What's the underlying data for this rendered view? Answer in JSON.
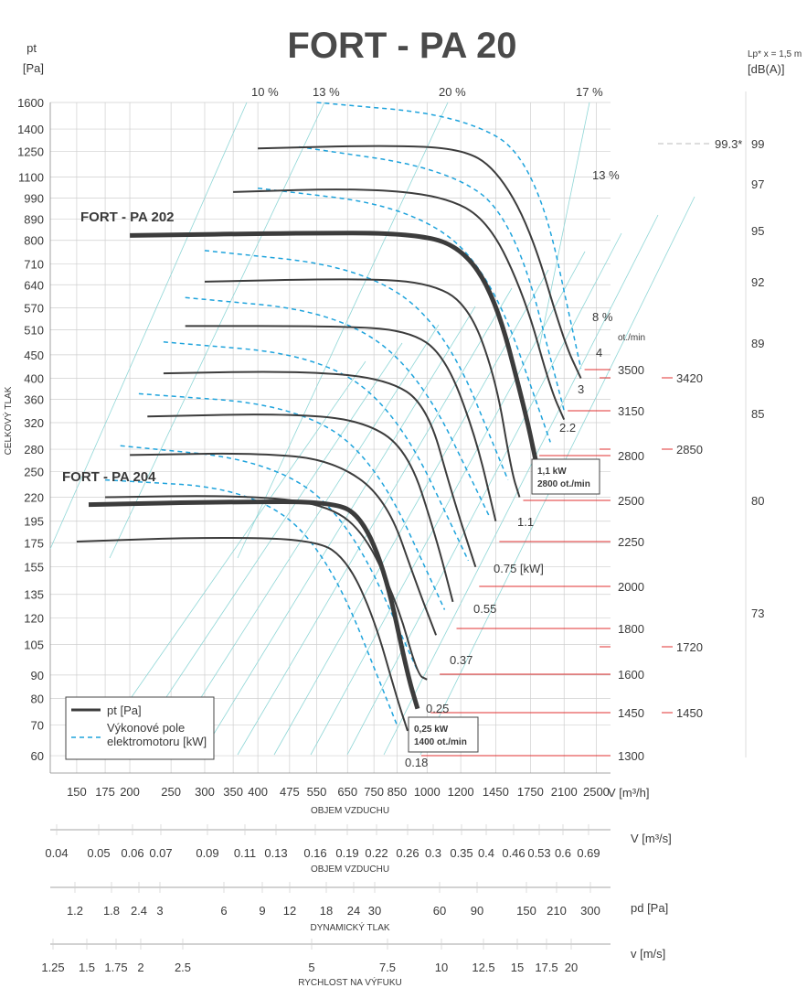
{
  "chart_data": {
    "type": "line",
    "title": "FORT - PA 20",
    "ylabel_unit": "pt\n[Pa]",
    "ylabel": "CELKOVÝ TLAK",
    "right_label": "Lp* x = 1,5 m\n[dB(A)]",
    "xlabel": "OBJEM VZDUCHU",
    "x_unit": "V [m³/h]",
    "y_ticks": [
      1600,
      1400,
      1250,
      1100,
      990,
      890,
      800,
      710,
      640,
      570,
      510,
      450,
      400,
      360,
      320,
      280,
      250,
      220,
      195,
      175,
      155,
      135,
      120,
      105,
      90,
      80,
      70,
      60
    ],
    "x_ticks": [
      150,
      175,
      200,
      250,
      300,
      350,
      400,
      475,
      550,
      650,
      750,
      850,
      1000,
      1200,
      1450,
      1750,
      2100,
      2500
    ],
    "efficiency_labels": [
      "10 %",
      "13 %",
      "20 %",
      "17 %",
      "13 %",
      "8 %"
    ],
    "speed_label": "ot./min",
    "speeds": [
      3500,
      3150,
      2800,
      2500,
      2250,
      2000,
      1800,
      1600,
      1450,
      1300
    ],
    "speed_extra": [
      3420,
      2850,
      1720,
      1450
    ],
    "power_labels": [
      "4",
      "3",
      "2.2",
      "1.1",
      "0.75  [kW]",
      "0.55",
      "0.37",
      "0.25",
      "0.18"
    ],
    "db_values": [
      "99",
      "97",
      "95",
      "92",
      "89",
      "85",
      "80",
      "73"
    ],
    "db_note": "99.3*",
    "series_labels": [
      "FORT - PA 202",
      "FORT - PA 204"
    ],
    "callouts": [
      {
        "kw": "1,1 kW",
        "rpm": "2800 ot./min"
      },
      {
        "kw": "0,25 kW",
        "rpm": "1400 ot./min"
      }
    ],
    "legend": {
      "curve": "pt [Pa]",
      "power": "Výkonové pole\nelektromotoru [kW]"
    },
    "curves": [
      {
        "rpm": 3500,
        "x": [
          400,
          800,
          1200,
          1450,
          1750,
          2100,
          2300
        ],
        "y": [
          1270,
          1290,
          1270,
          1150,
          850,
          480,
          400
        ]
      },
      {
        "rpm": 3150,
        "x": [
          350,
          700,
          1100,
          1400,
          1700,
          1950,
          2100
        ],
        "y": [
          1020,
          1040,
          1000,
          880,
          600,
          380,
          325
        ]
      },
      {
        "rpm": 2800,
        "x": [
          200,
          500,
          900,
          1200,
          1450,
          1700,
          1800
        ],
        "y": [
          820,
          830,
          830,
          780,
          600,
          340,
          265
        ],
        "thick": true,
        "name": "FORT - PA 202"
      },
      {
        "rpm": 2500,
        "x": [
          300,
          650,
          1000,
          1250,
          1450,
          1580,
          1650
        ],
        "y": [
          650,
          660,
          650,
          580,
          400,
          250,
          220
        ]
      },
      {
        "rpm": 2250,
        "x": [
          270,
          600,
          900,
          1100,
          1300,
          1450
        ],
        "y": [
          520,
          520,
          510,
          450,
          300,
          195
        ]
      },
      {
        "rpm": 2000,
        "x": [
          240,
          500,
          800,
          1000,
          1150,
          1300
        ],
        "y": [
          410,
          415,
          400,
          350,
          220,
          155
        ]
      },
      {
        "rpm": 1800,
        "x": [
          220,
          450,
          700,
          900,
          1050,
          1150
        ],
        "y": [
          330,
          335,
          325,
          280,
          180,
          130
        ]
      },
      {
        "rpm": 1600,
        "x": [
          200,
          400,
          600,
          800,
          950,
          1050
        ],
        "y": [
          272,
          275,
          265,
          220,
          140,
          110
        ]
      },
      {
        "rpm": 1450,
        "x": [
          175,
          350,
          550,
          700,
          850,
          950,
          1000
        ],
        "y": [
          220,
          222,
          215,
          190,
          130,
          90,
          88
        ]
      },
      {
        "rpm": 1400,
        "x": [
          160,
          350,
          600,
          700,
          800,
          900,
          950
        ],
        "y": [
          212,
          215,
          215,
          200,
          150,
          90,
          76
        ],
        "thick": true,
        "name": "FORT - PA 204"
      },
      {
        "rpm": 1300,
        "x": [
          150,
          300,
          550,
          650,
          750,
          850,
          900
        ],
        "y": [
          176,
          180,
          178,
          160,
          120,
          80,
          68
        ]
      }
    ],
    "power_curves": [
      {
        "kw": "4",
        "x": [
          550,
          1200,
          1800,
          2300
        ],
        "y": [
          1600,
          1500,
          1200,
          420
        ]
      },
      {
        "kw": "3",
        "x": [
          500,
          1100,
          1600,
          2100
        ],
        "y": [
          1280,
          1150,
          900,
          340
        ]
      },
      {
        "kw": "2.2",
        "x": [
          400,
          900,
          1400,
          1950
        ],
        "y": [
          1040,
          950,
          700,
          290
        ]
      },
      {
        "kw": "1.1",
        "x": [
          300,
          700,
          1100,
          1550
        ],
        "y": [
          760,
          700,
          520,
          240
        ]
      },
      {
        "kw": "0.75",
        "x": [
          270,
          600,
          950,
          1400
        ],
        "y": [
          600,
          560,
          420,
          200
        ]
      },
      {
        "kw": "0.55",
        "x": [
          240,
          550,
          850,
          1250
        ],
        "y": [
          480,
          450,
          340,
          160
        ]
      },
      {
        "kw": "0.37",
        "x": [
          210,
          480,
          750,
          1100
        ],
        "y": [
          370,
          350,
          270,
          125
        ]
      },
      {
        "kw": "0.25",
        "x": [
          190,
          420,
          650,
          950
        ],
        "y": [
          285,
          265,
          200,
          92
        ]
      },
      {
        "kw": "0.18",
        "x": [
          175,
          380,
          580,
          850
        ],
        "y": [
          240,
          230,
          170,
          70
        ]
      }
    ]
  },
  "axes2": {
    "vms": {
      "unit": "V [m³/s]",
      "label": "OBJEM VZDUCHU",
      "ticks": [
        "0.04",
        "0.05",
        "0.06",
        "0.07",
        "0.09",
        "0.11",
        "0.13",
        "0.16",
        "0.19",
        "0.22",
        "0.26",
        "0.3",
        "0.35",
        "0.4",
        "0.46",
        "0.53",
        "0.6",
        "0.69"
      ]
    },
    "pd": {
      "unit": "pd [Pa]",
      "label": "DYNAMICKÝ TLAK",
      "ticks": [
        "1.2",
        "1.8",
        "2.4",
        "3",
        "6",
        "9",
        "12",
        "18",
        "24",
        "30",
        "60",
        "90",
        "150",
        "210",
        "300"
      ]
    },
    "v": {
      "unit": "v [m/s]",
      "label": "RYCHLOST NA VÝFUKU",
      "ticks": [
        "1.25",
        "1.5",
        "1.75",
        "2",
        "2.5",
        "5",
        "7.5",
        "10",
        "12.5",
        "15",
        "17.5",
        "20"
      ]
    }
  }
}
